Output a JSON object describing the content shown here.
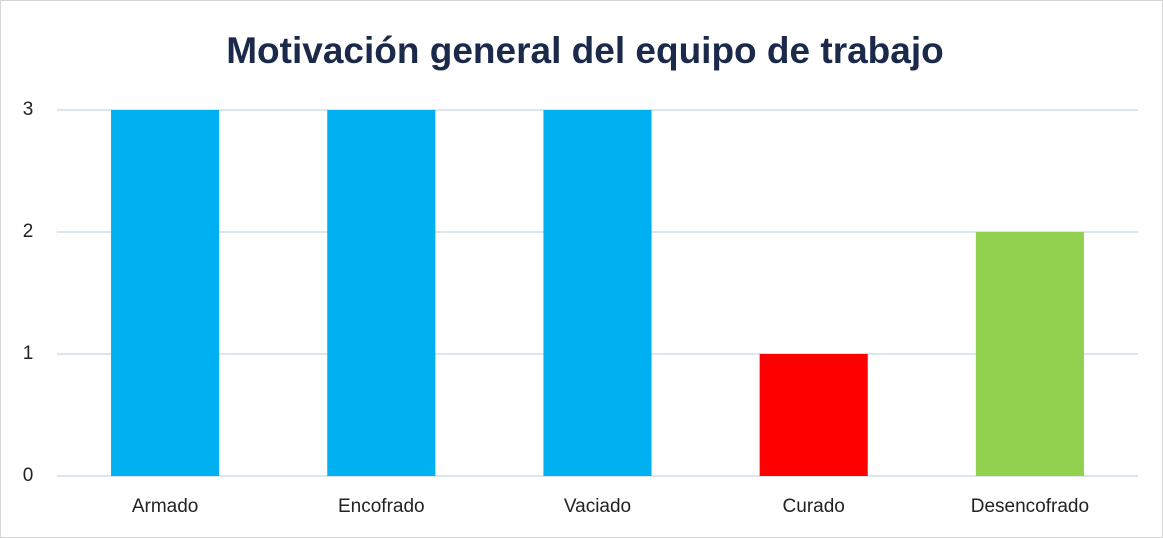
{
  "chart_data": {
    "type": "bar",
    "title": "Motivación general del equipo de trabajo",
    "categories": [
      "Armado",
      "Encofrado",
      "Vaciado",
      "Curado",
      "Desencofrado"
    ],
    "values": [
      3,
      3,
      3,
      1,
      2
    ],
    "colors": [
      "#00b0f0",
      "#00b0f0",
      "#00b0f0",
      "#ff0000",
      "#92d050"
    ],
    "ylim": [
      0,
      3
    ],
    "yticks": [
      0,
      1,
      2,
      3
    ],
    "grid": true
  }
}
